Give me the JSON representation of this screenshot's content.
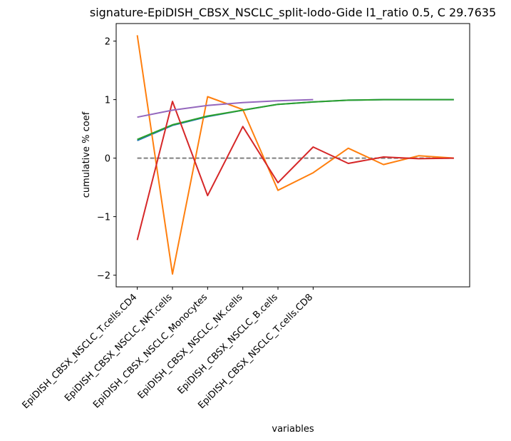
{
  "chart_data": {
    "type": "line",
    "title": "signature-EpiDISH_CBSX_NSCLC_split-lodo-Gide l1_ratio 0.5, C 29.7635",
    "xlabel": "variables",
    "ylabel": "cumulative % coef",
    "categories": [
      "EpiDISH_CBSX_NSCLC_T.cells.CD4",
      "EpiDISH_CBSX_NSCLC_NKT.cells",
      "EpiDISH_CBSX_NSCLC_Monocytes",
      "EpiDISH_CBSX_NSCLC_NK.cells",
      "EpiDISH_CBSX_NSCLC_B.cells",
      "EpiDISH_CBSX_NSCLC_T.cells.CD8"
    ],
    "xlim": [
      -0.6,
      9.45
    ],
    "ylim": [
      -2.2,
      2.3
    ],
    "yticks": [
      -2,
      -1,
      0,
      1,
      2
    ],
    "ytick_labels": [
      "−2",
      "−1",
      "0",
      "1",
      "2"
    ],
    "grid": false,
    "series": [
      {
        "color": "#1f77b4",
        "x": [
          0,
          1,
          2,
          3,
          4,
          5,
          6,
          7,
          8,
          9
        ],
        "values": [
          0.3,
          0.56,
          0.71,
          0.82,
          0.92,
          0.96,
          0.99,
          1.0,
          1.0,
          1.0
        ]
      },
      {
        "color": "#ff7f0e",
        "x": [
          0,
          1,
          2,
          3,
          4,
          5,
          6,
          7,
          8,
          9
        ],
        "values": [
          2.1,
          -1.98,
          1.05,
          0.83,
          -0.55,
          -0.25,
          0.17,
          -0.11,
          0.04,
          0.0
        ]
      },
      {
        "color": "#2ca02c",
        "x": [
          0,
          1,
          2,
          3,
          4,
          5,
          6,
          7,
          8,
          9
        ],
        "values": [
          0.32,
          0.57,
          0.72,
          0.82,
          0.92,
          0.96,
          0.99,
          1.0,
          1.0,
          1.0
        ]
      },
      {
        "color": "#d62728",
        "x": [
          0,
          1,
          2,
          3,
          4,
          5,
          6,
          7,
          8,
          9
        ],
        "values": [
          -1.4,
          0.97,
          -0.64,
          0.54,
          -0.42,
          0.19,
          -0.09,
          0.02,
          -0.01,
          0.0
        ]
      },
      {
        "color": "#9467bd",
        "x": [
          0,
          1,
          2,
          3,
          4,
          5
        ],
        "values": [
          0.7,
          0.82,
          0.9,
          0.95,
          0.98,
          1.0
        ]
      }
    ],
    "reference_line": {
      "y": 0,
      "x_range": [
        0,
        9
      ],
      "color": "#808080",
      "style": "dashed"
    }
  }
}
